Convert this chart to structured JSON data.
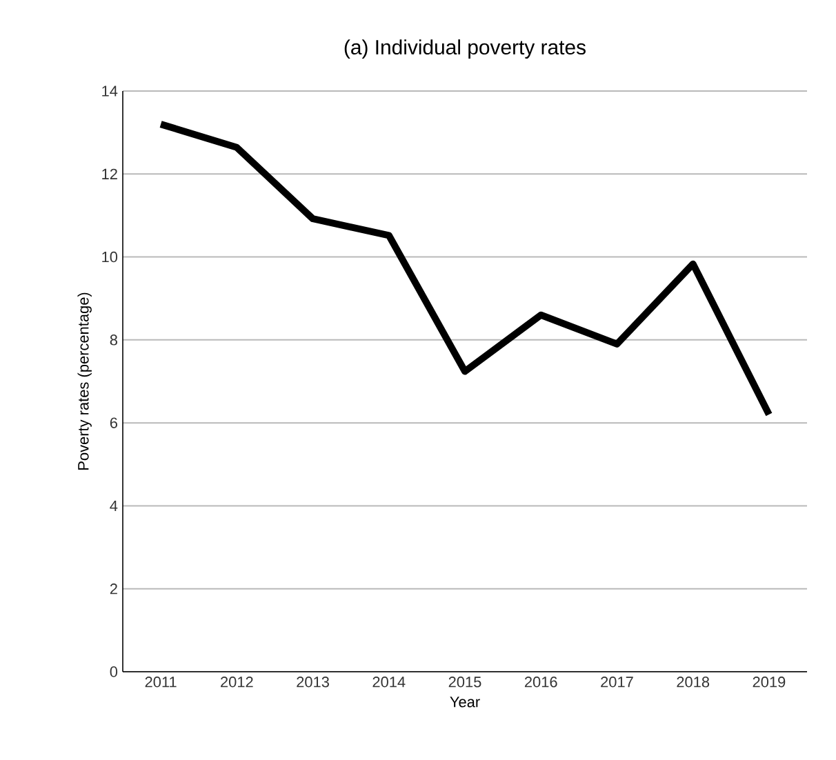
{
  "chart_data": {
    "type": "line",
    "title": "(a) Individual poverty rates",
    "xlabel": "Year",
    "ylabel": "Poverty rates (percentage)",
    "categories": [
      "2011",
      "2012",
      "2013",
      "2014",
      "2015",
      "2016",
      "2017",
      "2018",
      "2019"
    ],
    "series": [
      {
        "color": "#000000",
        "values": [
          13.2,
          12.64,
          10.92,
          10.52,
          7.24,
          8.6,
          7.9,
          9.83,
          6.2
        ]
      }
    ],
    "ylim": [
      0,
      14
    ],
    "yticks": [
      0,
      2,
      4,
      6,
      8,
      10,
      12,
      14
    ],
    "grid": "y",
    "marker": "none",
    "line_style": "solid"
  }
}
